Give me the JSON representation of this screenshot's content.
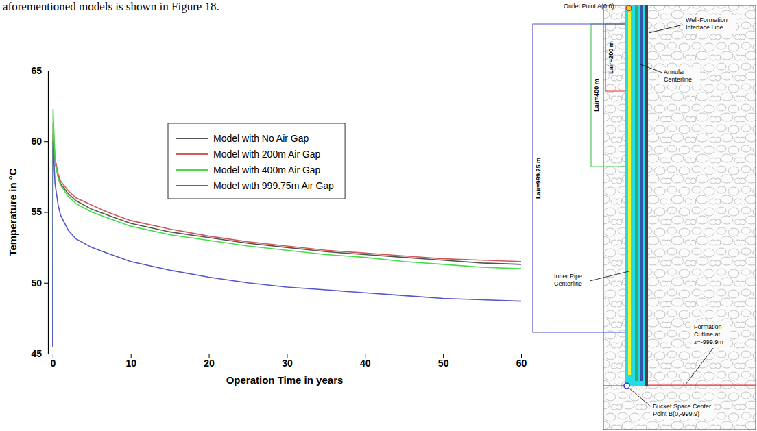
{
  "header_text": "aforementioned models is shown in Figure 18.",
  "chart_data": {
    "type": "line",
    "x_label": "Operation Time in years",
    "y_label": "Temperature in °C",
    "x": [
      0,
      0.05,
      0.3,
      0.7,
      1,
      2,
      3,
      5,
      7,
      10,
      15,
      20,
      25,
      30,
      35,
      40,
      45,
      50,
      55,
      60
    ],
    "series": [
      {
        "name": "Model with No Air Gap",
        "color": "#555555",
        "values": [
          45.5,
          60.5,
          58.5,
          57.5,
          57.0,
          56.3,
          55.8,
          55.2,
          54.8,
          54.2,
          53.6,
          53.2,
          52.8,
          52.5,
          52.2,
          52.0,
          51.8,
          51.6,
          51.4,
          51.3
        ]
      },
      {
        "name": "Model with 200m Air Gap",
        "color": "#d05a5a",
        "values": [
          45.5,
          61.3,
          58.8,
          57.7,
          57.2,
          56.5,
          56.0,
          55.5,
          55.0,
          54.4,
          53.8,
          53.3,
          52.9,
          52.6,
          52.3,
          52.1,
          51.9,
          51.7,
          51.6,
          51.5
        ]
      },
      {
        "name": "Model with 400m Air Gap",
        "color": "#44dd44",
        "values": [
          45.5,
          62.3,
          58.6,
          57.4,
          56.9,
          56.1,
          55.6,
          55.0,
          54.6,
          54.0,
          53.4,
          53.0,
          52.6,
          52.3,
          52.0,
          51.8,
          51.5,
          51.3,
          51.1,
          51.0
        ]
      },
      {
        "name": "Model with 999.75m Air Gap",
        "color": "#5555cc",
        "values": [
          45.5,
          60.0,
          57.0,
          55.5,
          54.8,
          53.7,
          53.1,
          52.5,
          52.1,
          51.5,
          50.9,
          50.4,
          50.0,
          49.7,
          49.5,
          49.3,
          49.1,
          48.9,
          48.8,
          48.7
        ]
      }
    ],
    "xlim": [
      -0.6,
      60
    ],
    "xticks": [
      0,
      10,
      20,
      30,
      40,
      50,
      60
    ],
    "ylim": [
      45,
      65
    ],
    "yticks": [
      45,
      50,
      55,
      60,
      65
    ],
    "grid": false,
    "legend": "top"
  },
  "diagram": {
    "outlet_point": "Outlet Point A(0,0)",
    "air_gap_labels": [
      "Lair=200 m",
      "Lair=400 m",
      "Lair=999.75 m"
    ],
    "well_formation_interface": [
      "Well-Formation",
      "Interface Line"
    ],
    "annular_centerline": [
      "Annular",
      "Centerline"
    ],
    "inner_pipe_centerline": [
      "Inner Pipe",
      "Centerline"
    ],
    "formation_cutline": [
      "Formation",
      "Cutline at",
      "z=-999.9m"
    ],
    "bucket_point": [
      "Bucket Space Center",
      "Point B(0,-999.9)"
    ]
  }
}
